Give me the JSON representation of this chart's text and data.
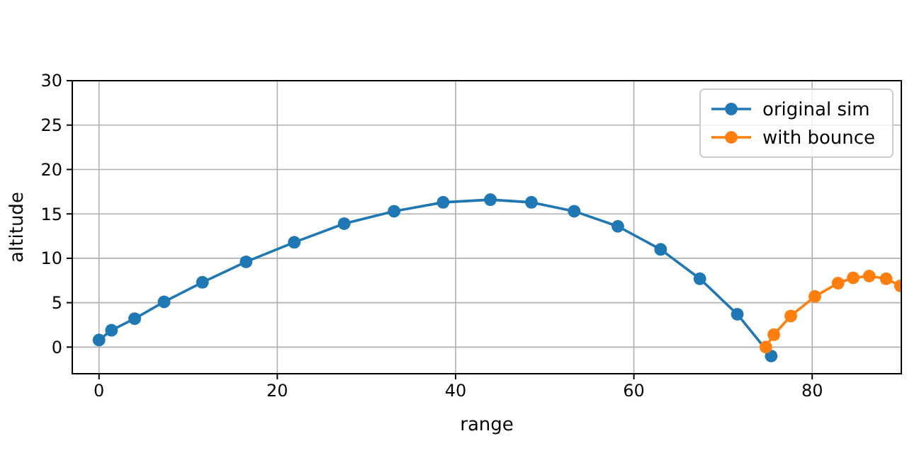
{
  "chart_data": {
    "type": "line",
    "xlabel": "range",
    "ylabel": "altitude",
    "xlim": [
      -3,
      90
    ],
    "xticks": [
      0,
      20,
      40,
      60,
      80
    ],
    "ylim": [
      -3,
      30
    ],
    "yticks": [
      0,
      5,
      10,
      15,
      20,
      25,
      30
    ],
    "grid": true,
    "legend": "top right",
    "marker": "circle",
    "series": [
      {
        "name": "original sim",
        "color": "#1f77b4",
        "x": [
          0,
          1.4,
          4,
          7.3,
          11.6,
          16.5,
          21.9,
          27.5,
          33.1,
          38.6,
          43.9,
          48.5,
          53.3,
          58.2,
          63,
          67.4,
          71.6,
          75.4
        ],
        "values": [
          0.8,
          1.9,
          3.2,
          5.1,
          7.3,
          9.6,
          11.8,
          13.9,
          15.3,
          16.3,
          16.6,
          16.3,
          15.3,
          13.6,
          11.0,
          7.7,
          3.7,
          -1.0
        ]
      },
      {
        "name": "with bounce",
        "color": "#ff7f0e",
        "x": [
          74.8,
          75.7,
          77.6,
          80.3,
          82.9,
          84.6,
          86.4,
          88.3,
          89.9
        ],
        "values": [
          0.0,
          1.4,
          3.5,
          5.7,
          7.2,
          7.8,
          8.0,
          7.7,
          6.9
        ]
      }
    ]
  }
}
